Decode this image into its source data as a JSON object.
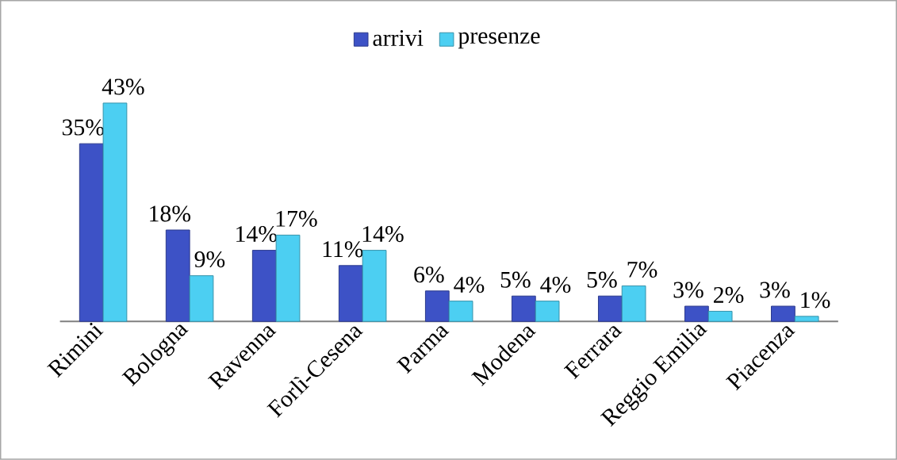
{
  "chart_data": {
    "type": "bar",
    "categories": [
      "Rimini",
      "Bologna",
      "Ravenna",
      "Forlì-Cesena",
      "Parma",
      "Modena",
      "Ferrara",
      "Reggio Emilia",
      "Piacenza"
    ],
    "series": [
      {
        "name": "arrivi",
        "color": "#3d52c6",
        "values": [
          35,
          18,
          14,
          11,
          6,
          5,
          5,
          3,
          3
        ],
        "value_labels": [
          "35%",
          "18%",
          "14%",
          "11%",
          "6%",
          "5%",
          "5%",
          "3%",
          "3%"
        ]
      },
      {
        "name": "presenze",
        "color": "#4ccff2",
        "values": [
          43,
          9,
          17,
          14,
          4,
          4,
          7,
          2,
          1
        ],
        "value_labels": [
          "43%",
          "9%",
          "17%",
          "14%",
          "4%",
          "4%",
          "7%",
          "2%",
          "1%"
        ]
      }
    ],
    "legend": "top"
  }
}
